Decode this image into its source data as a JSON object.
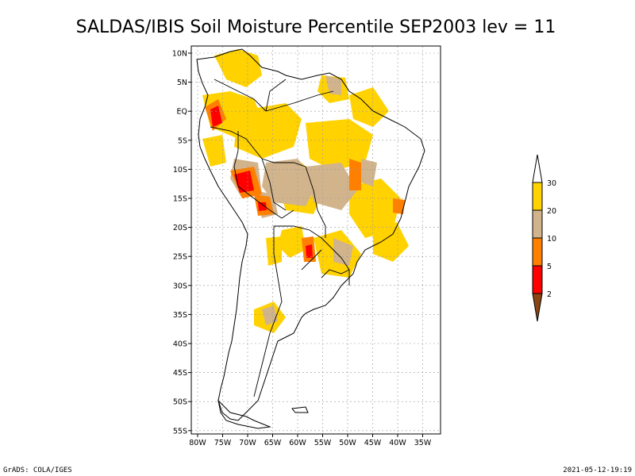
{
  "title": "SALDAS/IBIS Soil Moisture Percentile SEP2003 lev = 11",
  "footer_left": "GrADS: COLA/IGES",
  "footer_right": "2021-05-12-19:19",
  "axes": {
    "lon_labels": [
      "80W",
      "75W",
      "70W",
      "65W",
      "60W",
      "55W",
      "50W",
      "45W",
      "40W",
      "35W"
    ],
    "lat_labels": [
      "10N",
      "5N",
      "EQ",
      "5S",
      "10S",
      "15S",
      "20S",
      "25S",
      "30S",
      "35S",
      "40S",
      "45S",
      "50S",
      "55S"
    ]
  },
  "legend": {
    "labels": [
      "30",
      "20",
      "10",
      "5",
      "2"
    ],
    "colors": {
      "above30": "#ffffff",
      "c20_30": "#ffd200",
      "c10_20": "#d2b48c",
      "c5_10": "#ff8000",
      "c2_5": "#ff0000",
      "below2": "#8b4513"
    }
  },
  "palette": {
    "gold": "#ffd200",
    "tan": "#d2b48c",
    "orange": "#ff8000",
    "red": "#ff0000",
    "grid": "#999999",
    "coast": "#000000"
  }
}
